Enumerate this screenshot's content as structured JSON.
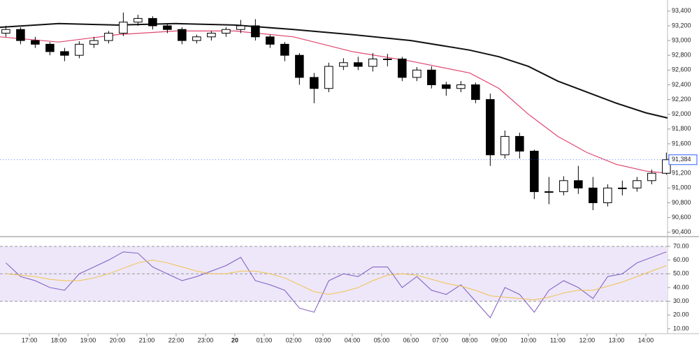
{
  "chart_data": [
    {
      "type": "candlestick",
      "up_color": "#ffffff",
      "down_color": "#000000",
      "edge_color": "#000000",
      "xlim": [
        16,
        38.74
      ],
      "ylim": [
        90350,
        93550
      ],
      "yticks": [
        {
          "value": 90400,
          "label": "90,400"
        },
        {
          "value": 90600,
          "label": "90,600"
        },
        {
          "value": 90800,
          "label": "90,800"
        },
        {
          "value": 91000,
          "label": "91,000"
        },
        {
          "value": 91200,
          "label": "91,200"
        },
        {
          "value": 91400,
          "label": "91,400"
        },
        {
          "value": 91600,
          "label": "91,600"
        },
        {
          "value": 91800,
          "label": "91,800"
        },
        {
          "value": 92000,
          "label": "92,000"
        },
        {
          "value": 92200,
          "label": "92,200"
        },
        {
          "value": 92400,
          "label": "92,400"
        },
        {
          "value": 92600,
          "label": "92,600"
        },
        {
          "value": 92800,
          "label": "92,800"
        },
        {
          "value": 93000,
          "label": "93,000"
        },
        {
          "value": 93200,
          "label": "93,200"
        },
        {
          "value": 93400,
          "label": "93,400"
        }
      ],
      "x": [
        16.2,
        16.7,
        17.2,
        17.7,
        18.2,
        18.7,
        19.2,
        19.7,
        20.2,
        20.7,
        21.2,
        21.7,
        22.2,
        22.7,
        23.2,
        23.7,
        24.2,
        24.7,
        25.2,
        25.7,
        26.2,
        26.7,
        27.2,
        27.7,
        28.2,
        28.7,
        29.2,
        29.7,
        30.2,
        30.7,
        31.2,
        31.7,
        32.2,
        32.7,
        33.2,
        33.7,
        34.2,
        34.7,
        35.2,
        35.7,
        36.2,
        36.7,
        37.2,
        37.7,
        38.2,
        38.7
      ],
      "open": [
        93100,
        93150,
        93000,
        92950,
        92850,
        92800,
        92950,
        93000,
        93100,
        93250,
        93300,
        93200,
        93150,
        93000,
        93050,
        93100,
        93150,
        93200,
        93050,
        92950,
        92800,
        92500,
        92350,
        92650,
        92700,
        92650,
        92750,
        92750,
        92500,
        92600,
        92400,
        92350,
        92400,
        92200,
        91450,
        91700,
        91500,
        90950,
        90950,
        91100,
        91000,
        90800,
        91000,
        91000,
        91100,
        91200
      ],
      "high": [
        93200,
        93180,
        93050,
        92980,
        92900,
        92990,
        93050,
        93130,
        93380,
        93350,
        93330,
        93230,
        93180,
        93080,
        93130,
        93180,
        93280,
        93290,
        93080,
        92980,
        92830,
        92560,
        92700,
        92760,
        92780,
        92830,
        92820,
        92780,
        92640,
        92650,
        92440,
        92450,
        92430,
        92280,
        91780,
        91750,
        91520,
        91150,
        91160,
        91300,
        91150,
        91050,
        91100,
        91150,
        91250,
        91480
      ],
      "low": [
        93050,
        92950,
        92900,
        92800,
        92720,
        92760,
        92900,
        92960,
        93060,
        93200,
        93150,
        93100,
        92950,
        92960,
        93000,
        93050,
        93100,
        93000,
        92900,
        92720,
        92400,
        92150,
        92300,
        92600,
        92600,
        92580,
        92650,
        92450,
        92450,
        92350,
        92250,
        92300,
        92150,
        91300,
        91400,
        91400,
        90850,
        90780,
        90900,
        90920,
        90700,
        90750,
        90900,
        90950,
        91050,
        91180
      ],
      "close": [
        93150,
        93000,
        92950,
        92850,
        92800,
        92950,
        93000,
        93100,
        93250,
        93300,
        93200,
        93150,
        93000,
        93050,
        93100,
        93150,
        93200,
        93050,
        92950,
        92800,
        92500,
        92350,
        92650,
        92700,
        92650,
        92750,
        92750,
        92500,
        92600,
        92400,
        92350,
        92400,
        92200,
        91450,
        91700,
        91500,
        90950,
        90950,
        91100,
        91000,
        90800,
        91000,
        91000,
        91100,
        91200,
        91384
      ],
      "series": [
        {
          "color": "#e0456f",
          "x": [
            16,
            18,
            20,
            22,
            24,
            26,
            28,
            30,
            32,
            33,
            34,
            35,
            36,
            37,
            38,
            38.74
          ],
          "values": [
            93050,
            92980,
            93080,
            93130,
            93130,
            93050,
            92850,
            92720,
            92560,
            92350,
            92000,
            91700,
            91480,
            91320,
            91230,
            91200
          ]
        },
        {
          "color": "#111111",
          "x": [
            16,
            18,
            20,
            22,
            24,
            26,
            28,
            30,
            32,
            33,
            34,
            35,
            36,
            37,
            38,
            38.74
          ],
          "values": [
            93180,
            93230,
            93210,
            93230,
            93210,
            93150,
            93080,
            93000,
            92870,
            92780,
            92650,
            92450,
            92300,
            92150,
            92020,
            91950
          ]
        }
      ],
      "last_price": {
        "value": 91384,
        "label": "91,384"
      },
      "last_price_color": "#2962ff"
    },
    {
      "type": "line",
      "xlim": [
        16,
        38.74
      ],
      "ylim": [
        6.4,
        76.6
      ],
      "band": [
        30,
        70
      ],
      "band_color": "#ede7f9",
      "midline": 50,
      "yticks": [
        {
          "value": 10,
          "label": "10.00"
        },
        {
          "value": 20,
          "label": "20.00"
        },
        {
          "value": 30,
          "label": "30.00"
        },
        {
          "value": 40,
          "label": "40.00"
        },
        {
          "value": 50,
          "label": "50.00"
        },
        {
          "value": 60,
          "label": "60.00"
        },
        {
          "value": 70,
          "label": "70.00"
        }
      ],
      "xticks": [
        {
          "value": 17,
          "label": "17:00"
        },
        {
          "value": 18,
          "label": "18:00"
        },
        {
          "value": 19,
          "label": "19:00"
        },
        {
          "value": 20,
          "label": "20:00"
        },
        {
          "value": 21,
          "label": "21:00"
        },
        {
          "value": 22,
          "label": "22:00"
        },
        {
          "value": 23,
          "label": "23:00"
        },
        {
          "value": 24,
          "label": "20"
        },
        {
          "value": 25,
          "label": "01:00"
        },
        {
          "value": 26,
          "label": "02:00"
        },
        {
          "value": 27,
          "label": "03:00"
        },
        {
          "value": 28,
          "label": "04:00"
        },
        {
          "value": 29,
          "label": "05:00"
        },
        {
          "value": 30,
          "label": "06:00"
        },
        {
          "value": 31,
          "label": "07:00"
        },
        {
          "value": 32,
          "label": "08:00"
        },
        {
          "value": 33,
          "label": "09:00"
        },
        {
          "value": 34,
          "label": "10:00"
        },
        {
          "value": 35,
          "label": "11:00"
        },
        {
          "value": 36,
          "label": "12:00"
        },
        {
          "value": 37,
          "label": "13:00"
        },
        {
          "value": 38,
          "label": "14:00"
        }
      ],
      "x": [
        16.2,
        16.7,
        17.2,
        17.7,
        18.2,
        18.7,
        19.2,
        19.7,
        20.2,
        20.7,
        21.2,
        21.7,
        22.2,
        22.7,
        23.2,
        23.7,
        24.2,
        24.7,
        25.2,
        25.7,
        26.2,
        26.7,
        27.2,
        27.7,
        28.2,
        28.7,
        29.2,
        29.7,
        30.2,
        30.7,
        31.2,
        31.7,
        32.2,
        32.7,
        33.2,
        33.7,
        34.2,
        34.7,
        35.2,
        35.7,
        36.2,
        36.7,
        37.2,
        37.7,
        38.2,
        38.7
      ],
      "series": [
        {
          "color": "#7e57c2",
          "values": [
            58,
            48,
            45,
            40,
            38,
            50,
            55,
            60,
            66,
            65,
            55,
            50,
            45,
            48,
            52,
            56,
            62,
            45,
            42,
            38,
            25,
            22,
            45,
            50,
            48,
            55,
            55,
            40,
            48,
            38,
            35,
            42,
            30,
            18,
            40,
            35,
            22,
            38,
            45,
            40,
            32,
            48,
            50,
            58,
            62,
            66
          ]
        },
        {
          "color": "#f2c14e",
          "values": [
            50,
            49,
            48,
            46,
            45,
            45,
            47,
            50,
            54,
            58,
            60,
            58,
            55,
            52,
            50,
            50,
            52,
            52,
            50,
            47,
            42,
            37,
            35,
            37,
            40,
            45,
            49,
            50,
            49,
            46,
            43,
            41,
            38,
            34,
            33,
            32,
            31,
            33,
            36,
            38,
            38,
            41,
            44,
            48,
            52,
            56
          ]
        }
      ]
    }
  ]
}
